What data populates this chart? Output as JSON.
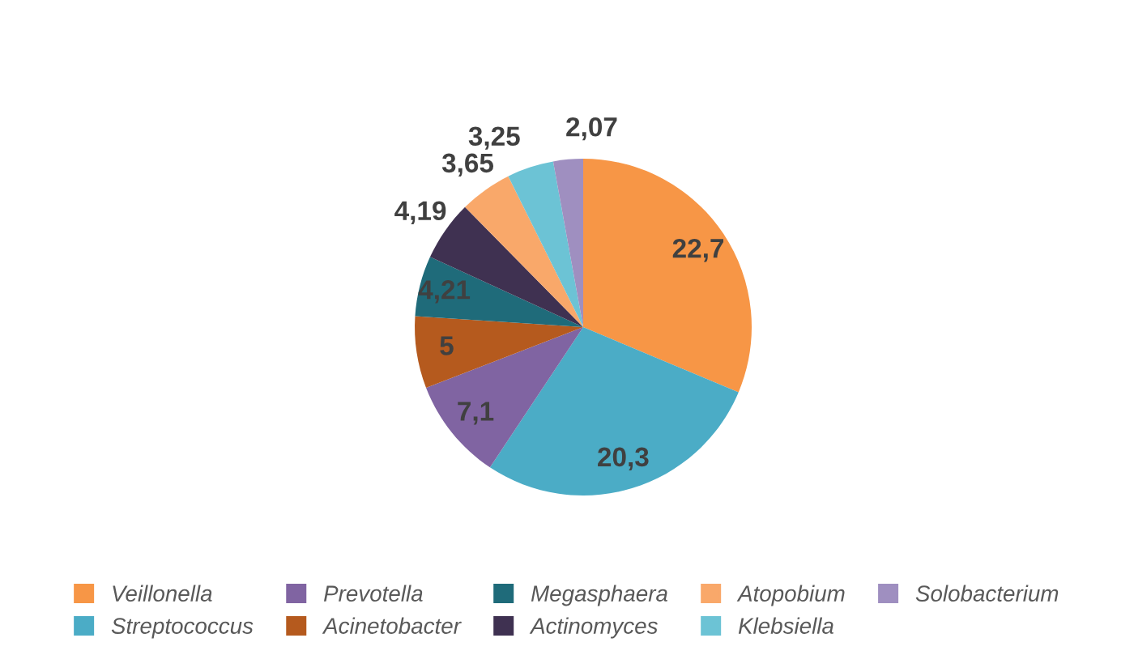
{
  "chart_data": {
    "type": "pie",
    "categories": [
      "Veillonella",
      "Streptococcus",
      "Prevotella",
      "Acinetobacter",
      "Megasphaera",
      "Actinomyces",
      "Atopobium",
      "Klebsiella",
      "Solobacterium"
    ],
    "values": [
      22.7,
      20.3,
      7.1,
      5,
      4.21,
      4.19,
      3.65,
      3.25,
      2.07
    ],
    "value_labels": [
      "22,7",
      "20,3",
      "7,1",
      "5",
      "4,21",
      "4,19",
      "3,65",
      "3,25",
      "2,07"
    ],
    "colors": [
      "#f79646",
      "#4bacc6",
      "#8064a2",
      "#b55a1e",
      "#1f6b7a",
      "#3f3151",
      "#f9a86a",
      "#6cc3d5",
      "#9f8fc0"
    ],
    "legend": "bottom"
  }
}
